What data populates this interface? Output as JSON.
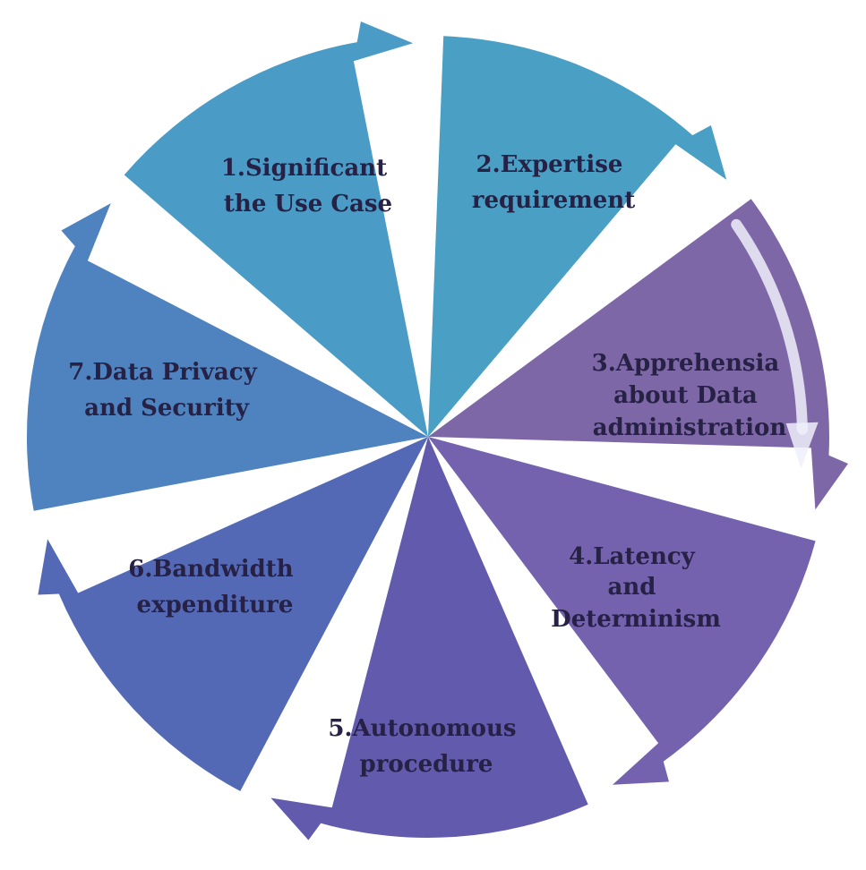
{
  "diagram": {
    "type": "cycle",
    "segments": [
      {
        "id": "s1",
        "lines": [
          "1.Significant",
          "the Use Case"
        ],
        "color": "#4aa0c4"
      },
      {
        "id": "s2",
        "lines": [
          "2.Expertise",
          "requirement"
        ],
        "color": "#7e67a6"
      },
      {
        "id": "s3",
        "lines": [
          "3.Apprehensia",
          "about Data",
          "administration"
        ],
        "color": "#7462ae"
      },
      {
        "id": "s4",
        "lines": [
          "4.Latency",
          "and",
          "Determinism"
        ],
        "color": "#615aad"
      },
      {
        "id": "s5",
        "lines": [
          "5.Autonomous",
          "procedure"
        ],
        "color": "#5469b6"
      },
      {
        "id": "s6",
        "lines": [
          "6.Bandwidth",
          "expenditure"
        ],
        "color": "#4f83bf"
      },
      {
        "id": "s7",
        "lines": [
          "7.Data Privacy",
          "and Security"
        ],
        "color": "#4a9bc6"
      }
    ],
    "label_color": "#262145",
    "arrow_color": "#eef0fa"
  }
}
